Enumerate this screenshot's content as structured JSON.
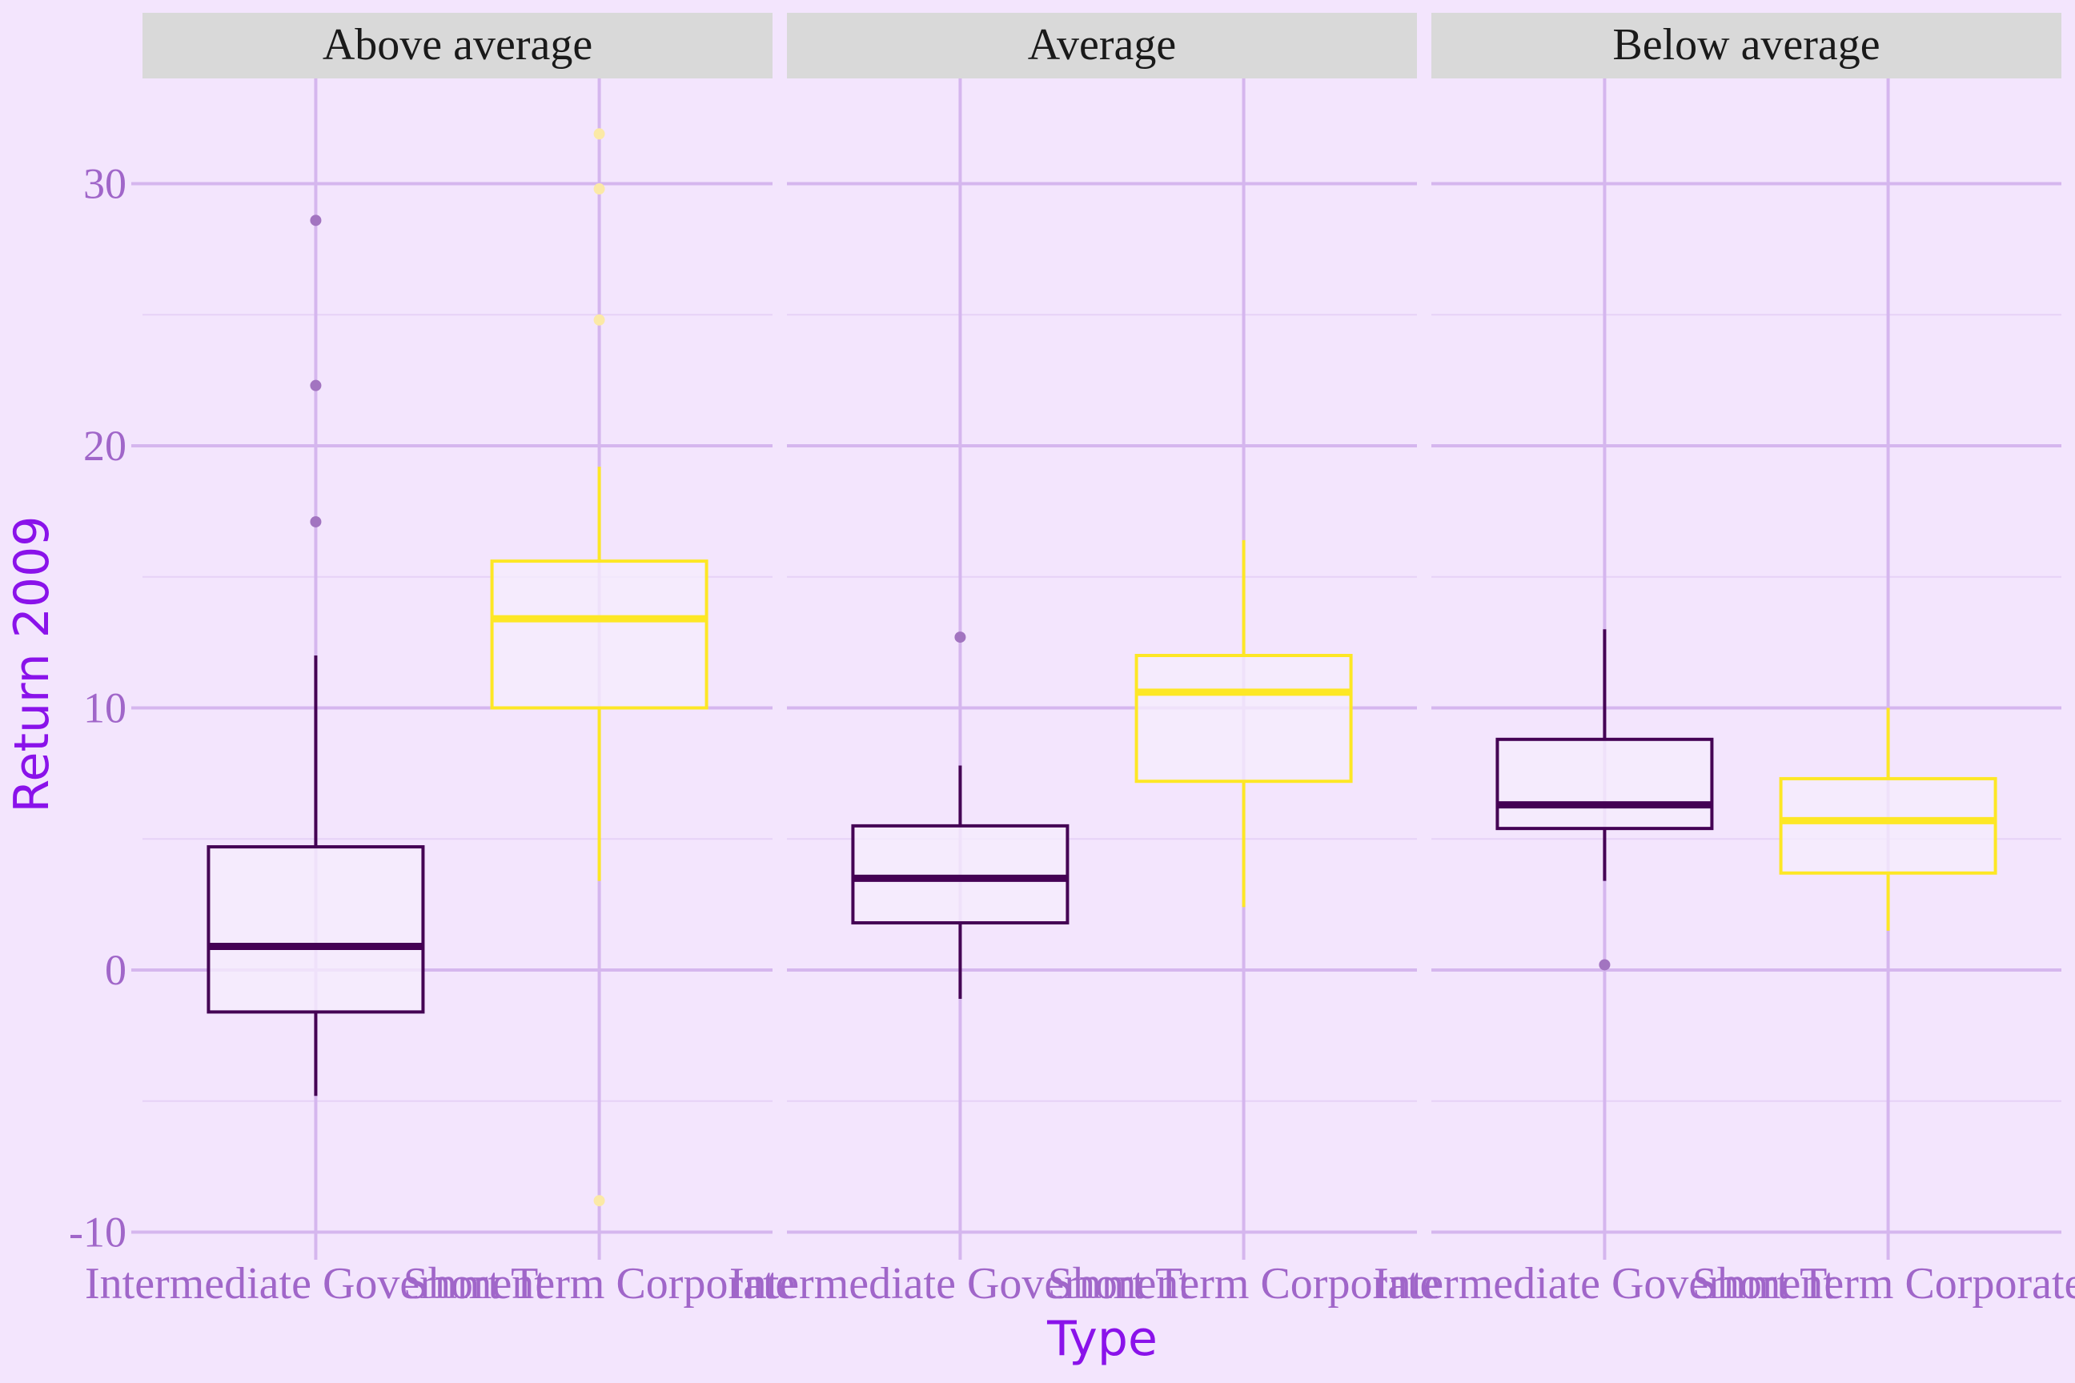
{
  "chart_data": {
    "type": "boxplot",
    "xlabel": "Type",
    "ylabel": "Return 2009",
    "ylim": [
      -11,
      33
    ],
    "y_ticks": [
      -10,
      0,
      10,
      20,
      30
    ],
    "y_tick_labels": [
      "-10",
      "0",
      "10",
      "20",
      "30"
    ],
    "categories": [
      "Intermediate Government",
      "Short Term Corporate"
    ],
    "category_colors": [
      "#440154",
      "#fde725"
    ],
    "grid": true,
    "legend": "none",
    "panels": [
      {
        "facet": "Above average",
        "boxes": [
          {
            "category": "Intermediate Government",
            "lower_whisker": -4.8,
            "q1": -1.6,
            "median": 0.9,
            "q3": 4.7,
            "upper_whisker": 12.0,
            "outliers": [
              17.1,
              22.3,
              28.6
            ]
          },
          {
            "category": "Short Term Corporate",
            "lower_whisker": 3.4,
            "q1": 10.0,
            "median": 13.4,
            "q3": 15.6,
            "upper_whisker": 19.2,
            "outliers": [
              24.8,
              29.8,
              31.9,
              -8.8
            ]
          }
        ]
      },
      {
        "facet": "Average",
        "boxes": [
          {
            "category": "Intermediate Government",
            "lower_whisker": -1.1,
            "q1": 1.8,
            "median": 3.5,
            "q3": 5.5,
            "upper_whisker": 7.8,
            "outliers": [
              12.7
            ]
          },
          {
            "category": "Short Term Corporate",
            "lower_whisker": 2.4,
            "q1": 7.2,
            "median": 10.6,
            "q3": 12.0,
            "upper_whisker": 16.4,
            "outliers": []
          }
        ]
      },
      {
        "facet": "Below average",
        "boxes": [
          {
            "category": "Intermediate Government",
            "lower_whisker": 3.4,
            "q1": 5.4,
            "median": 6.3,
            "q3": 8.8,
            "upper_whisker": 13.0,
            "outliers": [
              0.2
            ]
          },
          {
            "category": "Short Term Corporate",
            "lower_whisker": 1.5,
            "q1": 3.7,
            "median": 5.7,
            "q3": 7.3,
            "upper_whisker": 10.0,
            "outliers": []
          }
        ]
      }
    ]
  },
  "x_tick_labels": [
    "Intermediate Government",
    "Short Term Corporate"
  ],
  "colors": {
    "background": "#f3e5fd",
    "grid_major": "#d5b6ee",
    "grid_minor": "#e6d2f7",
    "strip_fill": "#d9d9d9",
    "box_fill": "#f5ecfd",
    "tick_text": "#a066c9",
    "axis_title": "#8a12ea",
    "outlier_gov": "#a274c0",
    "outlier_corp": "#fbe9a6"
  }
}
